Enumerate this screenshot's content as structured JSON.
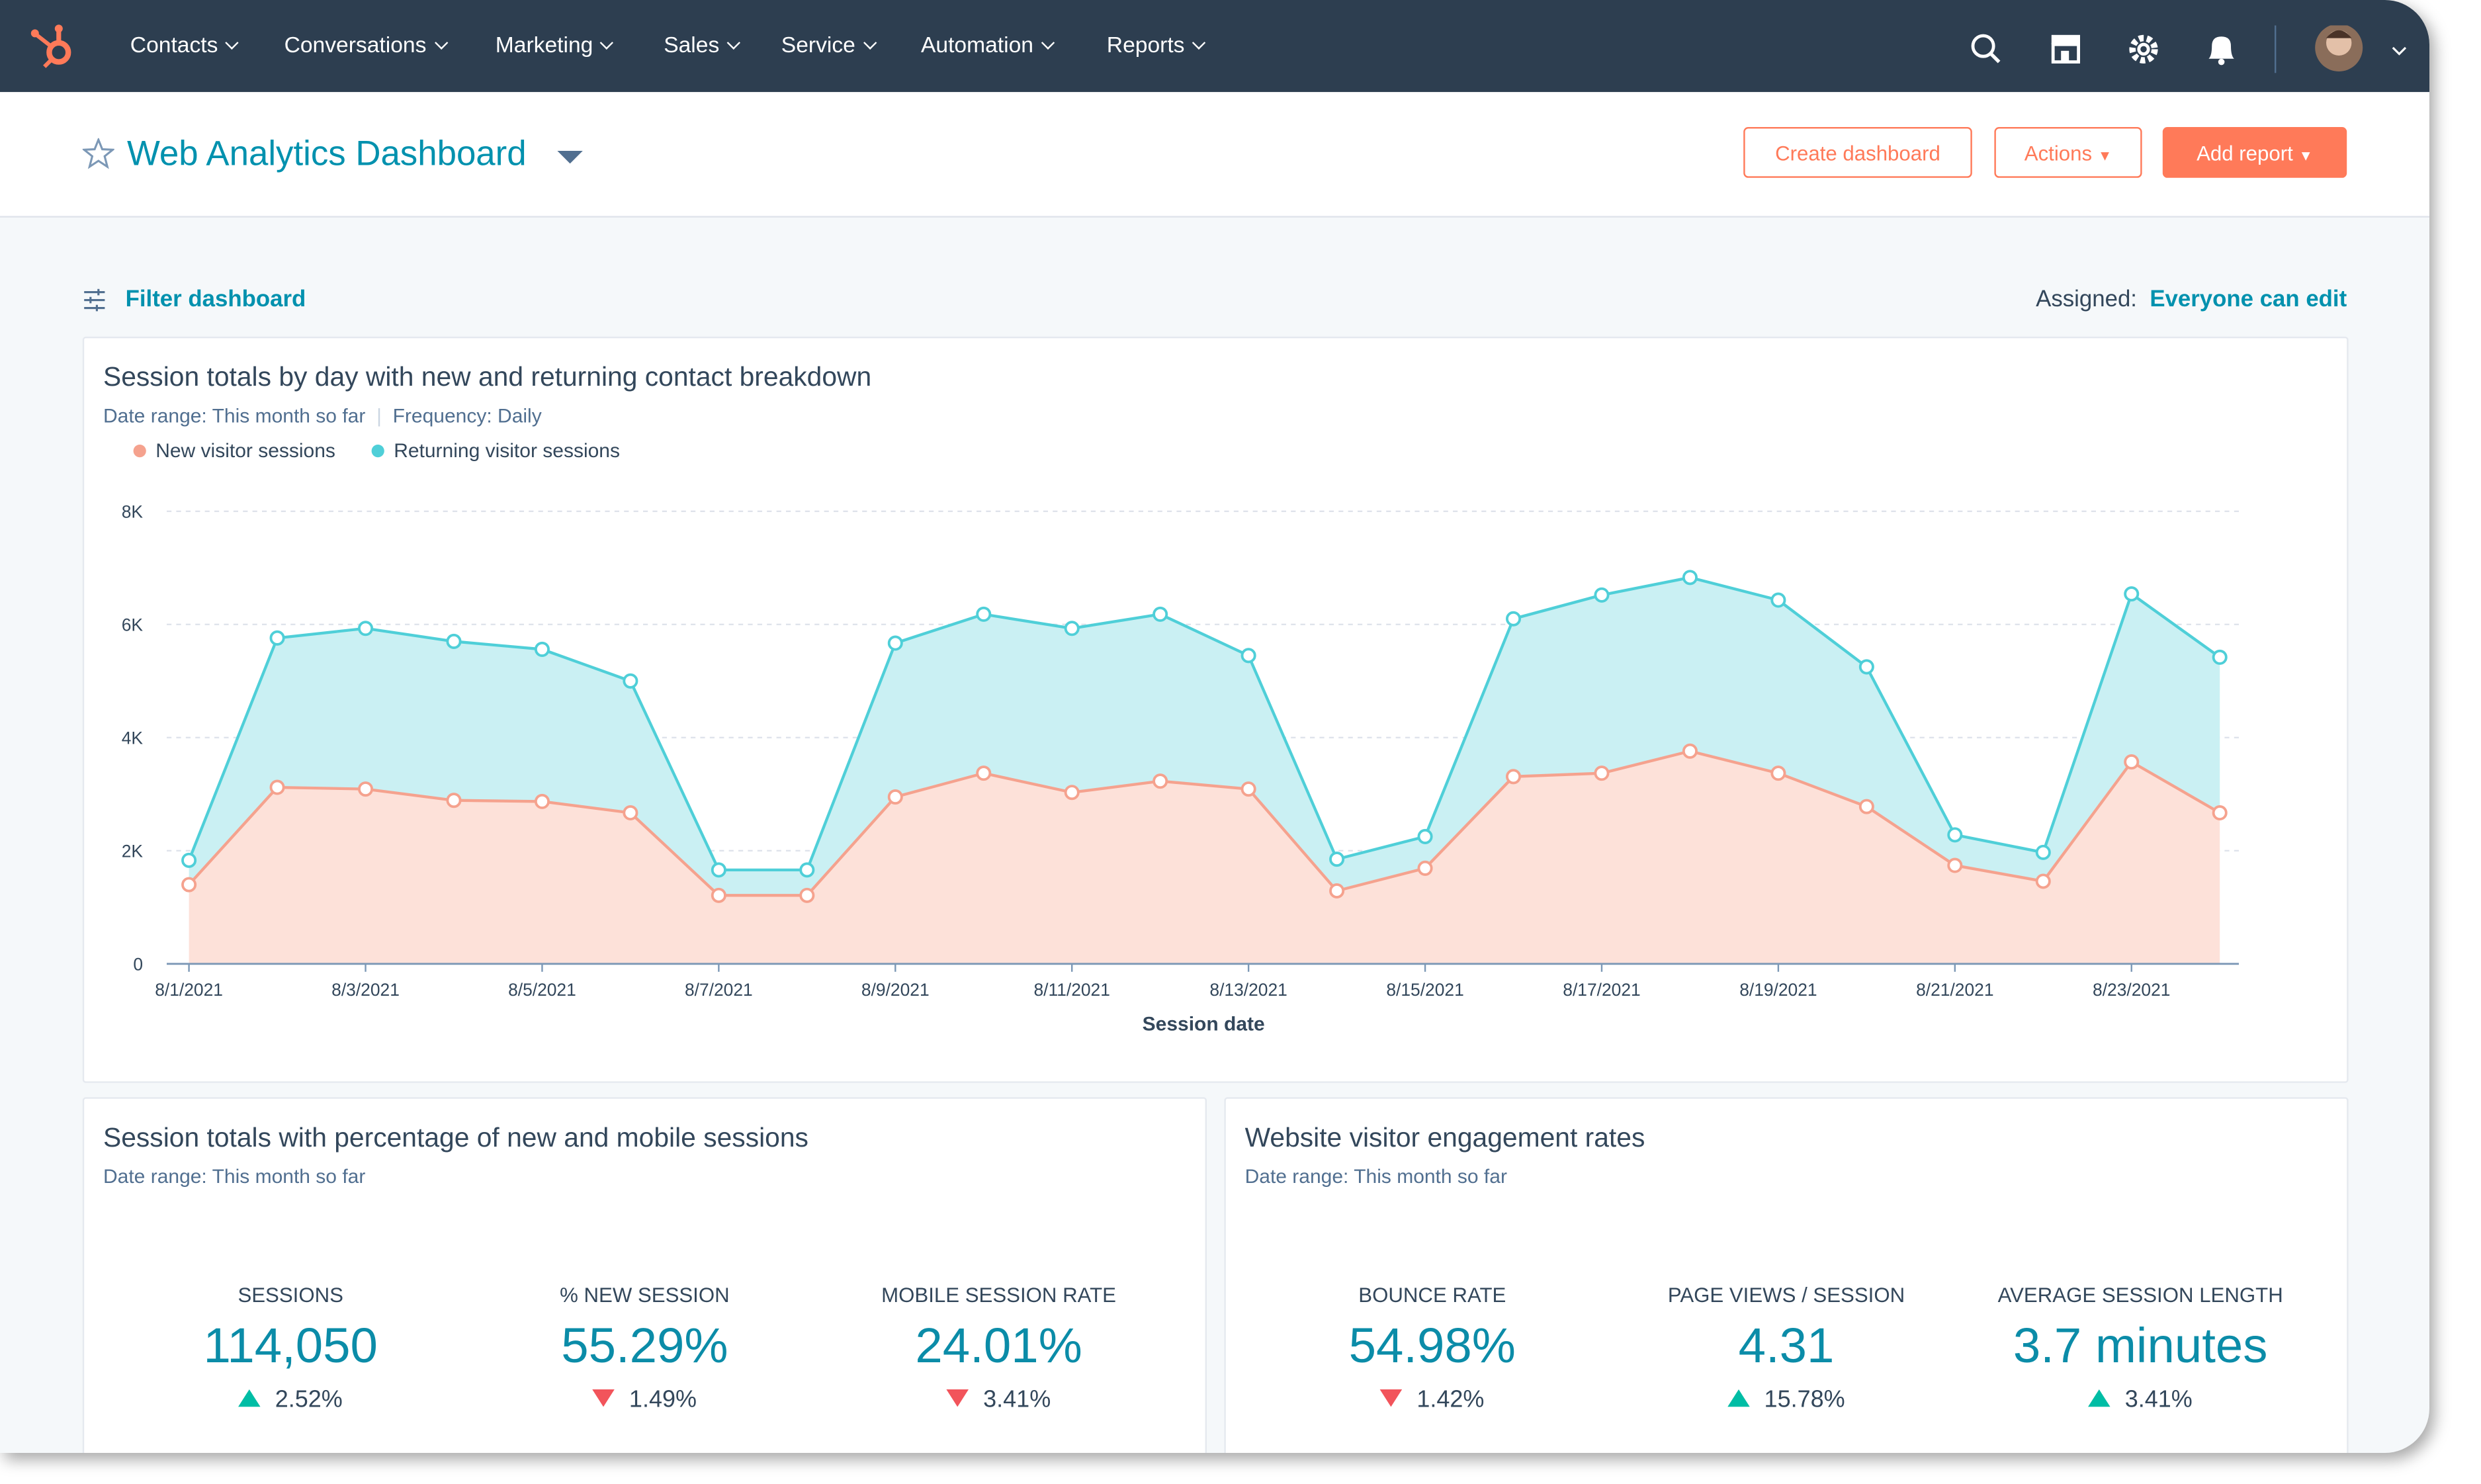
{
  "nav": {
    "items": [
      "Contacts",
      "Conversations",
      "Marketing",
      "Sales",
      "Service",
      "Automation",
      "Reports"
    ]
  },
  "header": {
    "title": "Web Analytics Dashboard",
    "buttons": [
      "Create dashboard",
      "Actions",
      "Add report"
    ]
  },
  "toolbar": {
    "filter": "Filter dashboard",
    "assigned_label": "Assigned:",
    "assigned_value": "Everyone can edit"
  },
  "chart_data": {
    "type": "area",
    "stacked": true,
    "title": "Session totals by day with new and returning contact breakdown",
    "date_range_label": "Date range:",
    "date_range": "This month so far",
    "frequency_label": "Frequency:",
    "frequency": "Daily",
    "x_label": "Session date",
    "categories": [
      "8/1/2021",
      null,
      "8/3/2021",
      null,
      "8/5/2021",
      null,
      "8/7/2021",
      null,
      "8/9/2021",
      null,
      "8/11/2021",
      null,
      "8/13/2021",
      null,
      "8/15/2021",
      null,
      "8/17/2021",
      null,
      "8/19/2021",
      null,
      "8/21/2021",
      null,
      "8/23/2021",
      null
    ],
    "series": [
      {
        "name": "New visitor sessions",
        "color": "#f5a28e",
        "fill": "#fde1d9",
        "values": [
          1400,
          3120,
          3090,
          2890,
          2870,
          2670,
          1210,
          1210,
          2950,
          3370,
          3030,
          3230,
          3090,
          1290,
          1690,
          3310,
          3370,
          3760,
          3370,
          2780,
          1740,
          1460,
          3570,
          2670
        ]
      },
      {
        "name": "Returning visitor sessions",
        "color": "#4fcfd8",
        "fill": "#caf0f3",
        "values": [
          430,
          2640,
          2840,
          2810,
          2690,
          2330,
          450,
          450,
          2720,
          2810,
          2900,
          2950,
          2360,
          560,
          560,
          2790,
          3150,
          3070,
          3060,
          2470,
          540,
          510,
          2970,
          2750
        ]
      }
    ],
    "ylim": [
      0,
      8000
    ],
    "yticks": [
      0,
      {
        "value": 2000,
        "label": "2K"
      },
      {
        "value": 4000,
        "label": "4K"
      },
      {
        "value": 6000,
        "label": "6K"
      },
      {
        "value": 8000,
        "label": "8K"
      }
    ],
    "grid": true,
    "legend": "top-left"
  },
  "kpi_cards": [
    {
      "title": "Session totals with percentage of new and mobile sessions",
      "date_range_label": "Date range:",
      "date_range": "This month so far",
      "kpis": [
        {
          "label": "SESSIONS",
          "value": "114,050",
          "change": "2.52%",
          "trend": "up"
        },
        {
          "label": "% NEW SESSION",
          "value": "55.29%",
          "change": "1.49%",
          "trend": "down"
        },
        {
          "label": "MOBILE SESSION RATE",
          "value": "24.01%",
          "change": "3.41%",
          "trend": "down"
        }
      ]
    },
    {
      "title": "Website visitor engagement rates",
      "date_range_label": "Date range:",
      "date_range": "This month so far",
      "kpis": [
        {
          "label": "BOUNCE RATE",
          "value": "54.98%",
          "change": "1.42%",
          "trend": "down"
        },
        {
          "label": "PAGE VIEWS / SESSION",
          "value": "4.31",
          "change": "15.78%",
          "trend": "up"
        },
        {
          "label": "AVERAGE SESSION LENGTH",
          "value": "3.7 minutes",
          "change": "3.41%",
          "trend": "up"
        }
      ]
    }
  ]
}
